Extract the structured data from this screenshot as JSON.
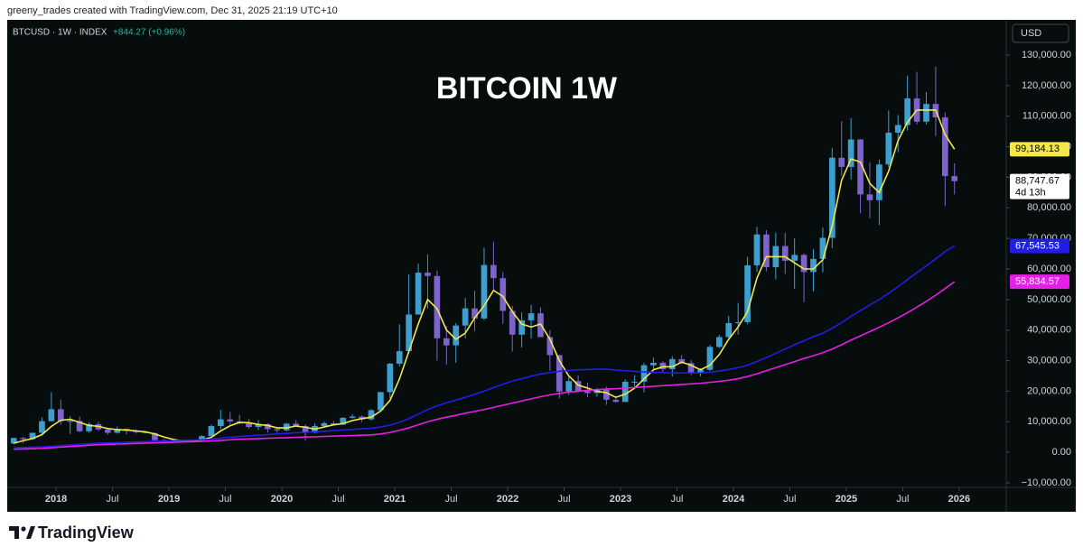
{
  "page": {
    "attribution": "greeny_trades created with TradingView.com, Dec 31, 2025 21:19 UTC+10",
    "brand": "TradingView"
  },
  "chart_data": {
    "type": "candlestick",
    "title": "BITCOIN 1W",
    "symbol": "BTCUSD · 1W · INDEX",
    "change": "+844.27 (+0.96%)",
    "currency": "USD",
    "x": [
      "2017-08",
      "2017-09",
      "2017-10",
      "2017-11",
      "2017-12",
      "2018-01",
      "2018-02",
      "2018-03",
      "2018-04",
      "2018-05",
      "2018-06",
      "2018-07",
      "2018-08",
      "2018-09",
      "2018-10",
      "2018-11",
      "2018-12",
      "2019-01",
      "2019-02",
      "2019-03",
      "2019-04",
      "2019-05",
      "2019-06",
      "2019-07",
      "2019-08",
      "2019-09",
      "2019-10",
      "2019-11",
      "2019-12",
      "2020-01",
      "2020-02",
      "2020-03",
      "2020-04",
      "2020-05",
      "2020-06",
      "2020-07",
      "2020-08",
      "2020-09",
      "2020-10",
      "2020-11",
      "2020-12",
      "2021-01",
      "2021-02",
      "2021-03",
      "2021-04",
      "2021-05",
      "2021-06",
      "2021-07",
      "2021-08",
      "2021-09",
      "2021-10",
      "2021-11",
      "2021-12",
      "2022-01",
      "2022-02",
      "2022-03",
      "2022-04",
      "2022-05",
      "2022-06",
      "2022-07",
      "2022-08",
      "2022-09",
      "2022-10",
      "2022-11",
      "2022-12",
      "2023-01",
      "2023-02",
      "2023-03",
      "2023-04",
      "2023-05",
      "2023-06",
      "2023-07",
      "2023-08",
      "2023-09",
      "2023-10",
      "2023-11",
      "2023-12",
      "2024-01",
      "2024-02",
      "2024-03",
      "2024-04",
      "2024-05",
      "2024-06",
      "2024-07",
      "2024-08",
      "2024-09",
      "2024-10",
      "2024-11",
      "2024-12",
      "2025-01",
      "2025-02",
      "2025-03",
      "2025-04",
      "2025-05",
      "2025-06",
      "2025-07",
      "2025-08",
      "2025-09",
      "2025-10",
      "2025-11",
      "2025-12"
    ],
    "xlim": [
      "2017-08",
      "2026-06"
    ],
    "xticks": [
      {
        "value": "2018-01",
        "label": "2018"
      },
      {
        "value": "2018-07",
        "label": "Jul"
      },
      {
        "value": "2019-01",
        "label": "2019"
      },
      {
        "value": "2019-07",
        "label": "Jul"
      },
      {
        "value": "2020-01",
        "label": "2020"
      },
      {
        "value": "2020-07",
        "label": "Jul"
      },
      {
        "value": "2021-01",
        "label": "2021"
      },
      {
        "value": "2021-07",
        "label": "Jul"
      },
      {
        "value": "2022-01",
        "label": "2022"
      },
      {
        "value": "2022-07",
        "label": "Jul"
      },
      {
        "value": "2023-01",
        "label": "2023"
      },
      {
        "value": "2023-07",
        "label": "Jul"
      },
      {
        "value": "2024-01",
        "label": "2024"
      },
      {
        "value": "2024-07",
        "label": "Jul"
      },
      {
        "value": "2025-01",
        "label": "2025"
      },
      {
        "value": "2025-07",
        "label": "Jul"
      },
      {
        "value": "2026-01",
        "label": "2026"
      }
    ],
    "ylim": [
      -10000,
      130000
    ],
    "yticks": [
      {
        "value": 130000,
        "label": "130,000.00"
      },
      {
        "value": 120000,
        "label": "120,000.00"
      },
      {
        "value": 110000,
        "label": "110,000.00"
      },
      {
        "value": 100000,
        "label": "100,000.00"
      },
      {
        "value": 90000,
        "label": "90,000.00"
      },
      {
        "value": 80000,
        "label": "80,000.00"
      },
      {
        "value": 70000,
        "label": "70,000.00"
      },
      {
        "value": 60000,
        "label": "60,000.00"
      },
      {
        "value": 50000,
        "label": "50,000.00"
      },
      {
        "value": 40000,
        "label": "40,000.00"
      },
      {
        "value": 30000,
        "label": "30,000.00"
      },
      {
        "value": 20000,
        "label": "20,000.00"
      },
      {
        "value": 10000,
        "label": "10,000.00"
      },
      {
        "value": 0,
        "label": "0.00"
      },
      {
        "value": -10000,
        "label": "−10,000.00"
      }
    ],
    "grid": false,
    "series": [
      {
        "type": "candlestick",
        "up_color": "#3d9fd0",
        "down_color": "#7d63cc",
        "open": [
          2900,
          4700,
          4300,
          6400,
          10200,
          14100,
          10200,
          10300,
          6900,
          9200,
          7500,
          6400,
          7700,
          7000,
          6600,
          6300,
          4000,
          3700,
          3500,
          3800,
          4100,
          5300,
          8600,
          10800,
          10100,
          9600,
          8300,
          9200,
          7600,
          7200,
          9400,
          8600,
          6400,
          8600,
          9500,
          9100,
          11300,
          11700,
          10800,
          13800,
          19700,
          29000,
          33100,
          45100,
          58800,
          57700,
          37300,
          35000,
          41500,
          47100,
          43800,
          61300,
          57000,
          46300,
          38500,
          43200,
          45500,
          37700,
          31800,
          19900,
          23300,
          20000,
          19400,
          20500,
          17200,
          16500,
          23100,
          23100,
          28500,
          29300,
          27200,
          30500,
          29200,
          25900,
          27000,
          34500,
          37700,
          42300,
          42600,
          61200,
          71300,
          60600,
          67500,
          62700,
          64600,
          59000,
          63300,
          70200,
          96400,
          93400,
          102400,
          84400,
          82500,
          94200,
          104600,
          107100,
          115800,
          108200,
          114000,
          109600,
          90400
        ],
        "high": [
          4700,
          5000,
          6400,
          11400,
          19700,
          17200,
          11800,
          11700,
          9800,
          10000,
          7800,
          8500,
          7800,
          7400,
          7000,
          6500,
          4300,
          4100,
          4200,
          4100,
          5600,
          9100,
          13900,
          13200,
          12300,
          10900,
          10500,
          9500,
          7700,
          9600,
          10500,
          9200,
          9500,
          10100,
          10400,
          11500,
          12500,
          12100,
          14100,
          19800,
          29300,
          41900,
          58300,
          61700,
          64800,
          59500,
          41300,
          42300,
          50500,
          52900,
          67000,
          69000,
          59000,
          47900,
          45800,
          48200,
          47400,
          40000,
          31900,
          24700,
          25200,
          22800,
          21100,
          21500,
          18400,
          23900,
          25300,
          29200,
          31000,
          29800,
          31400,
          31800,
          30200,
          27500,
          35200,
          38400,
          44700,
          48900,
          64000,
          73800,
          72700,
          71900,
          71900,
          70000,
          65100,
          66500,
          73600,
          99600,
          108300,
          109400,
          102500,
          95000,
          95800,
          111900,
          110400,
          123200,
          124500,
          117900,
          126200,
          111200,
          94600
        ],
        "low": [
          2600,
          3000,
          4100,
          5500,
          10100,
          9000,
          6000,
          6600,
          6400,
          7000,
          5800,
          6100,
          5900,
          6100,
          6200,
          3600,
          3200,
          3400,
          3400,
          3700,
          4100,
          5300,
          7500,
          9100,
          9300,
          7700,
          7300,
          6500,
          6400,
          6900,
          8500,
          3800,
          6200,
          8100,
          8900,
          8900,
          11000,
          9900,
          10400,
          13200,
          17600,
          28100,
          32300,
          45000,
          47000,
          30000,
          28800,
          29300,
          37300,
          39600,
          43300,
          53300,
          42000,
          33000,
          34300,
          37200,
          37700,
          26700,
          17600,
          18800,
          19600,
          18100,
          18200,
          15500,
          16300,
          16500,
          21400,
          19600,
          26900,
          25900,
          24800,
          28900,
          25200,
          24900,
          26600,
          34100,
          37600,
          38500,
          41900,
          59000,
          59200,
          56600,
          58400,
          53500,
          49100,
          52600,
          58900,
          66800,
          90500,
          89200,
          78200,
          76600,
          74400,
          93400,
          98200,
          105300,
          107300,
          107300,
          103500,
          80600,
          84400
        ],
        "close": [
          4700,
          4300,
          6400,
          10200,
          14100,
          10200,
          10300,
          6900,
          9200,
          7500,
          6400,
          7700,
          7000,
          6600,
          6300,
          4000,
          3700,
          3500,
          3800,
          4100,
          5300,
          8600,
          10800,
          10100,
          9600,
          8300,
          9200,
          7600,
          7200,
          9400,
          8600,
          6400,
          8600,
          9500,
          9100,
          11300,
          11700,
          10800,
          13800,
          19700,
          29000,
          33100,
          45100,
          58800,
          57700,
          37300,
          35000,
          41500,
          47100,
          43800,
          61300,
          57000,
          46300,
          38500,
          43200,
          45500,
          37700,
          31800,
          19900,
          23300,
          20000,
          19400,
          20500,
          17200,
          16500,
          23100,
          23100,
          28500,
          29300,
          27200,
          30500,
          29200,
          25900,
          27000,
          34500,
          37700,
          42300,
          42600,
          61200,
          71300,
          60600,
          67500,
          62700,
          64600,
          59000,
          63300,
          70200,
          96400,
          93400,
          102400,
          84400,
          82500,
          94200,
          104600,
          107100,
          115800,
          108200,
          114000,
          109600,
          90400,
          88747.67
        ],
        "price_label": {
          "value": 88747.67,
          "label": "88,747.67",
          "countdown": "4d 13h"
        }
      },
      {
        "type": "line",
        "color": "#f3e64a",
        "text_color": "#000000",
        "values": [
          3000,
          3800,
          4500,
          5800,
          8500,
          10500,
          10800,
          9800,
          8800,
          8500,
          7800,
          7400,
          7300,
          7000,
          6700,
          6000,
          5000,
          4200,
          3700,
          3700,
          4000,
          4900,
          7000,
          8700,
          9800,
          9700,
          9100,
          8800,
          8000,
          8000,
          8600,
          8200,
          7600,
          8300,
          9000,
          9400,
          10400,
          11000,
          11500,
          13500,
          17000,
          24000,
          33000,
          42000,
          50000,
          47000,
          40000,
          37000,
          39000,
          44000,
          48000,
          53000,
          51000,
          46000,
          42000,
          41000,
          42000,
          37000,
          30000,
          25000,
          22000,
          21000,
          20000,
          19500,
          18000,
          19000,
          21000,
          24000,
          27000,
          28000,
          28000,
          29500,
          28500,
          27000,
          28500,
          32000,
          37000,
          41000,
          46000,
          57000,
          64000,
          64000,
          64000,
          62000,
          60000,
          60000,
          63000,
          74000,
          89000,
          96000,
          95000,
          88000,
          85000,
          92000,
          102000,
          108000,
          112000,
          112000,
          112000,
          104000,
          99184.13
        ],
        "price_label": {
          "value": 99184.13,
          "label": "99,184.13"
        }
      },
      {
        "type": "line",
        "color": "#1f1ee6",
        "text_color": "#ffffff",
        "values": [
          1500,
          1600,
          1700,
          1800,
          2000,
          2200,
          2400,
          2600,
          2800,
          3000,
          3100,
          3200,
          3300,
          3400,
          3500,
          3600,
          3700,
          3800,
          3900,
          4000,
          4100,
          4300,
          4600,
          4900,
          5200,
          5400,
          5600,
          5800,
          6000,
          6200,
          6400,
          6500,
          6700,
          6900,
          7100,
          7300,
          7500,
          7700,
          7900,
          8300,
          8900,
          9800,
          11000,
          12500,
          14000,
          15200,
          16200,
          17100,
          18000,
          19000,
          20000,
          21200,
          22300,
          23300,
          24100,
          24900,
          25600,
          26100,
          26500,
          26800,
          27000,
          27100,
          27200,
          27200,
          26900,
          26700,
          26500,
          26300,
          26200,
          26100,
          26000,
          26000,
          26000,
          26000,
          26200,
          26600,
          27100,
          27700,
          28500,
          29700,
          31000,
          32400,
          33800,
          35200,
          36500,
          37800,
          39000,
          40600,
          42400,
          44500,
          46400,
          48200,
          50000,
          52000,
          54200,
          56500,
          58800,
          61000,
          63300,
          65700,
          67545.53
        ],
        "price_label": {
          "value": 67545.53,
          "label": "67,545.53"
        }
      },
      {
        "type": "line",
        "color": "#e61fe6",
        "text_color": "#ffffff",
        "values": [
          1000,
          1100,
          1200,
          1300,
          1500,
          1700,
          1900,
          2100,
          2300,
          2500,
          2600,
          2700,
          2800,
          2900,
          3000,
          3100,
          3200,
          3300,
          3400,
          3500,
          3600,
          3700,
          3900,
          4100,
          4300,
          4400,
          4500,
          4600,
          4700,
          4800,
          4900,
          5000,
          5100,
          5200,
          5300,
          5400,
          5500,
          5600,
          5700,
          6000,
          6500,
          7200,
          8000,
          9000,
          10000,
          10800,
          11500,
          12100,
          12800,
          13400,
          14000,
          14700,
          15400,
          16100,
          16800,
          17500,
          18200,
          18800,
          19300,
          19700,
          20000,
          20300,
          20500,
          20700,
          20800,
          21000,
          21200,
          21400,
          21600,
          21800,
          22000,
          22200,
          22400,
          22600,
          22900,
          23200,
          23600,
          24100,
          24800,
          25700,
          26700,
          27700,
          28700,
          29700,
          30700,
          31600,
          32600,
          33800,
          35200,
          36700,
          38100,
          39500,
          40900,
          42400,
          44000,
          45700,
          47500,
          49400,
          51400,
          53600,
          55834.57
        ],
        "price_label": {
          "value": 55834.57,
          "label": "55,834.57"
        }
      }
    ]
  }
}
